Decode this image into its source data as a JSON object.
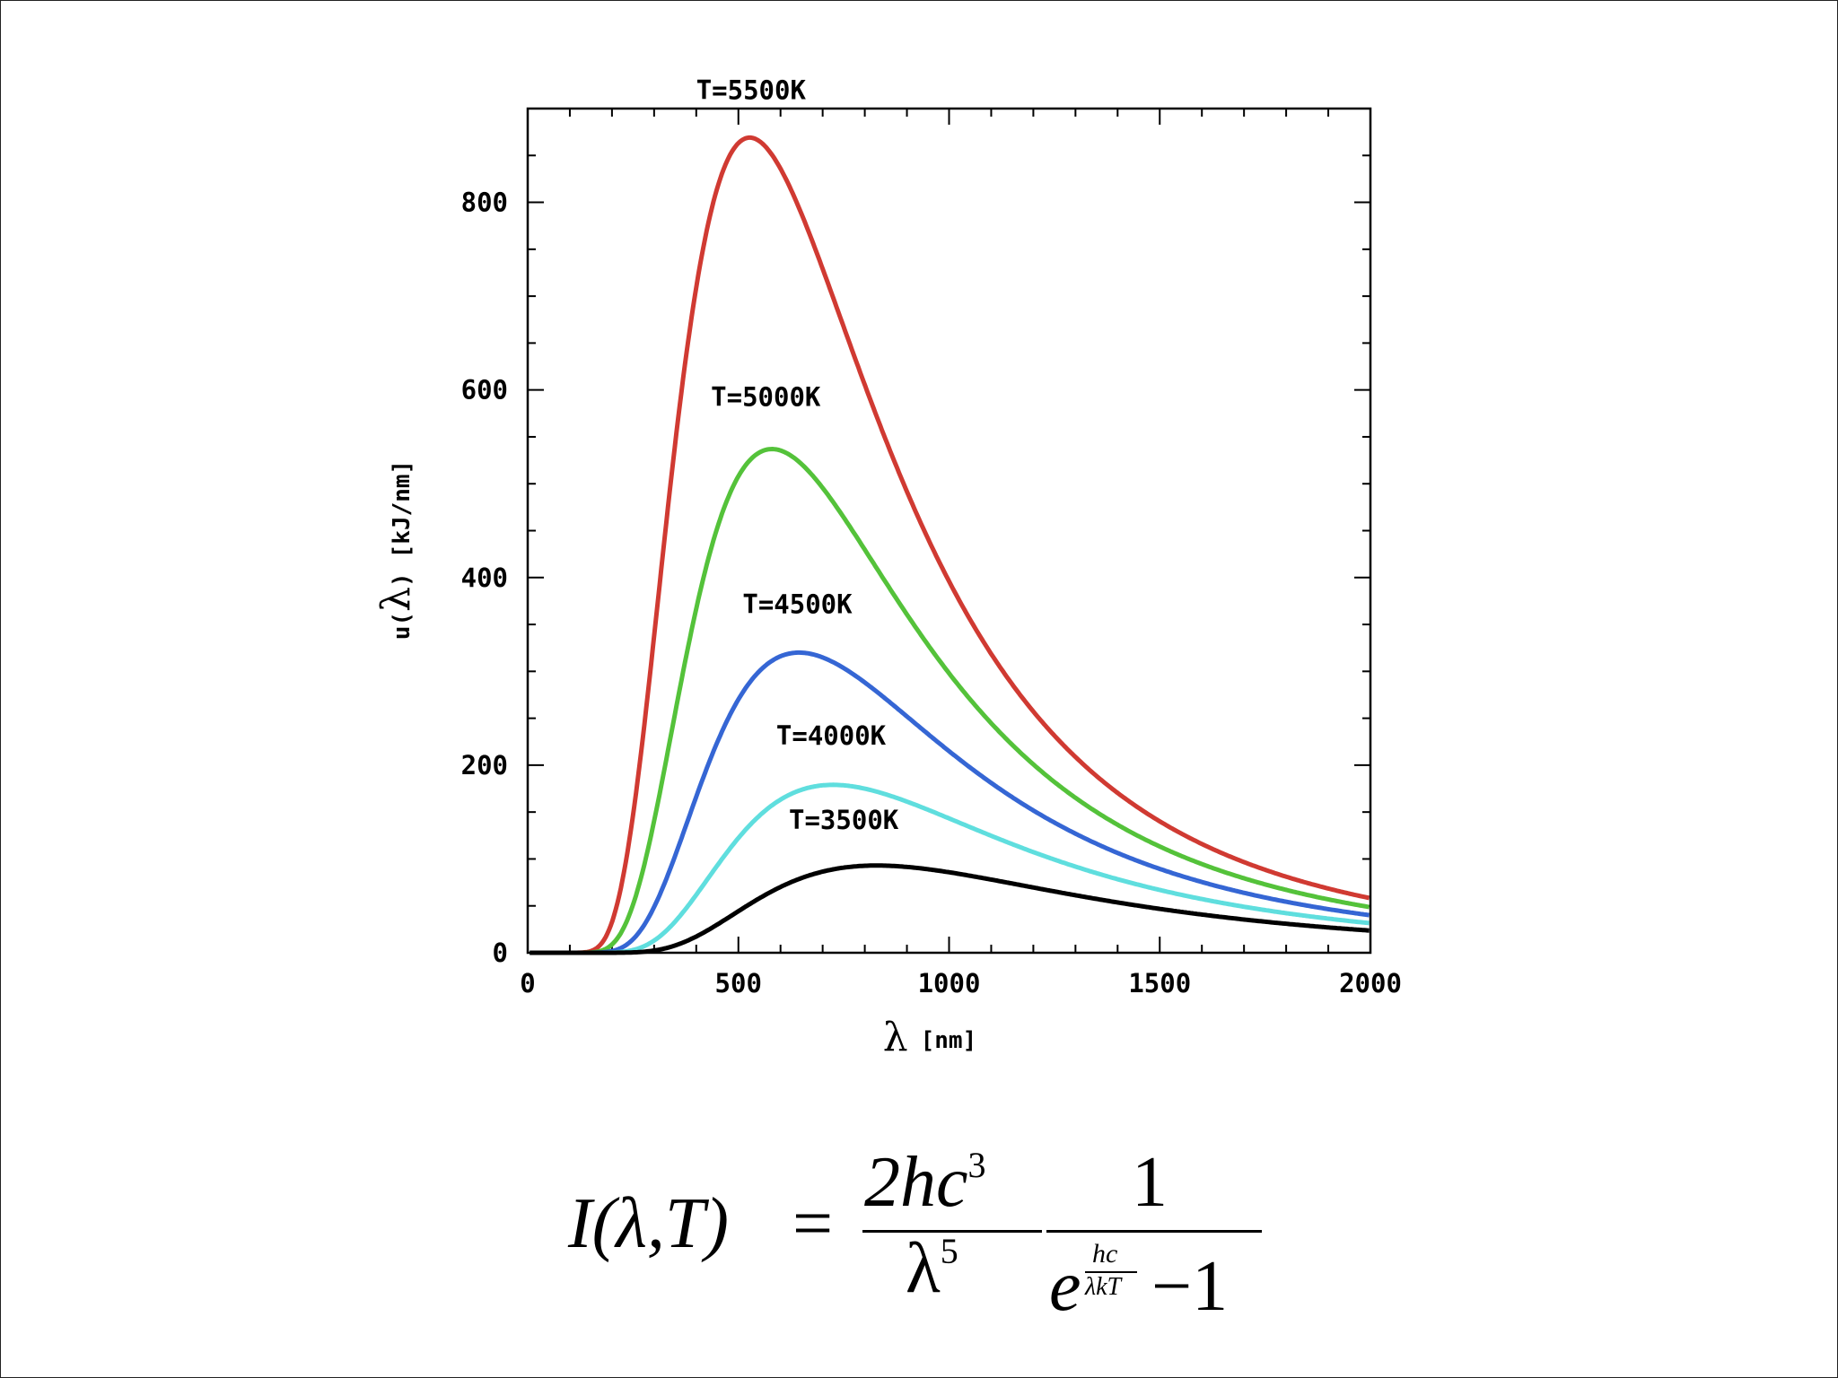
{
  "chart_data": {
    "type": "line",
    "xlabel_symbol": "λ",
    "xlabel_unit": "[nm]",
    "ylabel_func": "u(",
    "ylabel_symbol": "λ",
    "ylabel_close": ")",
    "ylabel_unit": "[kJ/nm]",
    "xlim": [
      0,
      2000
    ],
    "ylim": [
      0,
      900
    ],
    "x_ticks": [
      0,
      500,
      1000,
      1500,
      2000
    ],
    "y_ticks": [
      0,
      200,
      400,
      600,
      800
    ],
    "grid": false,
    "series": [
      {
        "name": "T=5500K",
        "temperature": 5500,
        "color": "#d03a32",
        "peak_value": 869,
        "label_at": [
          530,
          910
        ]
      },
      {
        "name": "T=5000K",
        "temperature": 5000,
        "color": "#54c23a",
        "peak_value": 537,
        "label_at": [
          565,
          583
        ]
      },
      {
        "name": "T=4500K",
        "temperature": 4500,
        "color": "#3566d4",
        "peak_value": 320,
        "label_at": [
          640,
          362
        ]
      },
      {
        "name": "T=4000K",
        "temperature": 4000,
        "color": "#5fdede",
        "peak_value": 179,
        "label_at": [
          720,
          222
        ]
      },
      {
        "name": "T=3500K",
        "temperature": 3500,
        "color": "#000000",
        "peak_value": 93,
        "label_at": [
          750,
          132
        ]
      }
    ]
  },
  "formula": {
    "lhs": "I(λ,T)",
    "equals": "=",
    "num1": "2hc",
    "num1_sup": "3",
    "den1": "λ",
    "den1_sup": "5",
    "num2": "1",
    "den2_base": "e",
    "exp_num": "hc",
    "exp_den": "λkT",
    "den2_rest": "−1"
  }
}
